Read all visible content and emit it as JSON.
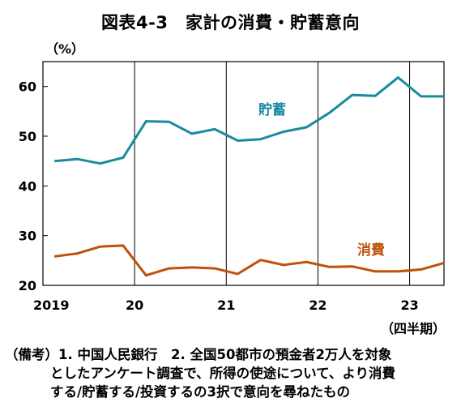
{
  "title": "図表4-3　家計の消費・貯蓄意向",
  "unit_label": "（%）",
  "period_label": "（四半期）",
  "note": {
    "line1": "（備考）1. 中国人民銀行　2. 全国50都市の預金者2万人を対象",
    "line2": "としたアンケート調査で、所得の使途について、より消費",
    "line3": "する/貯蓄する/投資するの3択で意向を尋ねたもの"
  },
  "chart_data": {
    "type": "line",
    "x": [
      "2019Q1",
      "2019Q2",
      "2019Q3",
      "2019Q4",
      "2020Q1",
      "2020Q2",
      "2020Q3",
      "2020Q4",
      "2021Q1",
      "2021Q2",
      "2021Q3",
      "2021Q4",
      "2022Q1",
      "2022Q2",
      "2022Q3",
      "2022Q4",
      "2023Q1",
      "2023Q2"
    ],
    "xtick_labels": [
      "2019",
      "20",
      "21",
      "22",
      "23"
    ],
    "ylim": [
      20,
      65
    ],
    "yticks": [
      20,
      30,
      40,
      50,
      60
    ],
    "grid": "vertical at year boundaries",
    "series": [
      {
        "name": "貯蓄",
        "color": "#1a8aa0",
        "values": [
          45.0,
          45.4,
          44.5,
          45.7,
          53.0,
          52.9,
          50.5,
          51.4,
          49.1,
          49.4,
          50.9,
          51.8,
          54.7,
          58.3,
          58.1,
          61.8,
          58.0,
          58.0
        ]
      },
      {
        "name": "消費",
        "color": "#c0500a",
        "values": [
          25.8,
          26.4,
          27.8,
          28.0,
          22.0,
          23.4,
          23.6,
          23.4,
          22.3,
          25.1,
          24.1,
          24.7,
          23.7,
          23.8,
          22.8,
          22.8,
          23.2,
          24.5
        ]
      }
    ]
  }
}
